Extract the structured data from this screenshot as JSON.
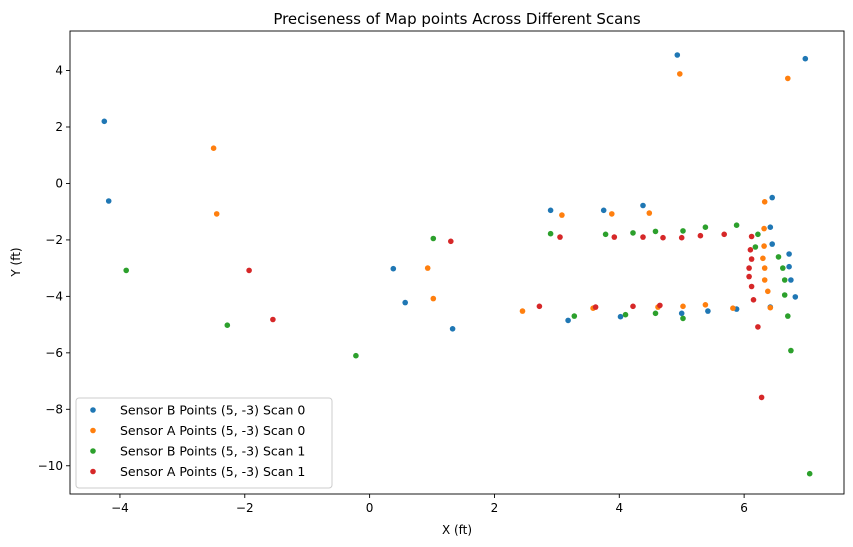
{
  "chart_data": {
    "type": "scatter",
    "title": "Preciseness of Map points Across Different Scans",
    "xlabel": "X (ft)",
    "ylabel": "Y (ft)",
    "xlim": [
      -4.8,
      7.6
    ],
    "ylim": [
      -11.0,
      5.4
    ],
    "xticks": [
      -4,
      -2,
      0,
      2,
      4,
      6
    ],
    "yticks": [
      -10,
      -8,
      -6,
      -4,
      -2,
      0,
      2,
      4
    ],
    "xtick_labels": [
      "−4",
      "−2",
      "0",
      "2",
      "4",
      "6"
    ],
    "ytick_labels": [
      "−10",
      "−8",
      "−6",
      "−4",
      "−2",
      "0",
      "2",
      "4"
    ],
    "grid": false,
    "legend_position": "lower-left",
    "series": [
      {
        "name": "Sensor B Points (5, -3) Scan 0",
        "color": "#1f77b4",
        "points": [
          [
            -4.25,
            2.2
          ],
          [
            -4.18,
            -0.62
          ],
          [
            0.38,
            -3.02
          ],
          [
            0.57,
            -4.22
          ],
          [
            1.33,
            -5.15
          ],
          [
            2.9,
            -0.95
          ],
          [
            3.18,
            -4.85
          ],
          [
            3.75,
            -0.95
          ],
          [
            4.02,
            -4.72
          ],
          [
            4.38,
            -0.78
          ],
          [
            5.0,
            -4.6
          ],
          [
            5.42,
            -4.52
          ],
          [
            5.88,
            -4.45
          ],
          [
            4.93,
            4.55
          ],
          [
            6.45,
            -0.5
          ],
          [
            6.42,
            -1.55
          ],
          [
            6.45,
            -2.15
          ],
          [
            6.72,
            -2.5
          ],
          [
            6.72,
            -2.95
          ],
          [
            6.75,
            -3.42
          ],
          [
            6.42,
            -4.38
          ],
          [
            6.82,
            -4.02
          ],
          [
            6.98,
            4.42
          ]
        ]
      },
      {
        "name": "Sensor A Points (5, -3) Scan 0",
        "color": "#ff7f0e",
        "points": [
          [
            -2.5,
            1.25
          ],
          [
            -2.45,
            -1.08
          ],
          [
            0.93,
            -3.0
          ],
          [
            1.02,
            -4.08
          ],
          [
            2.45,
            -4.52
          ],
          [
            3.08,
            -1.12
          ],
          [
            3.58,
            -4.42
          ],
          [
            3.88,
            -1.08
          ],
          [
            4.48,
            -1.05
          ],
          [
            4.62,
            -4.38
          ],
          [
            5.02,
            -4.35
          ],
          [
            5.38,
            -4.3
          ],
          [
            5.82,
            -4.42
          ],
          [
            4.97,
            3.88
          ],
          [
            6.33,
            -0.65
          ],
          [
            6.32,
            -1.6
          ],
          [
            6.32,
            -2.22
          ],
          [
            6.3,
            -2.65
          ],
          [
            6.33,
            -3.0
          ],
          [
            6.33,
            -3.42
          ],
          [
            6.38,
            -3.82
          ],
          [
            6.42,
            -4.4
          ],
          [
            6.7,
            3.72
          ]
        ]
      },
      {
        "name": "Sensor B Points (5, -3) Scan 1",
        "color": "#2ca02c",
        "points": [
          [
            -3.9,
            -3.08
          ],
          [
            -2.28,
            -5.02
          ],
          [
            -0.22,
            -6.1
          ],
          [
            1.02,
            -1.95
          ],
          [
            2.9,
            -1.78
          ],
          [
            3.28,
            -4.7
          ],
          [
            3.78,
            -1.8
          ],
          [
            4.1,
            -4.65
          ],
          [
            4.22,
            -1.75
          ],
          [
            4.58,
            -1.7
          ],
          [
            4.58,
            -4.6
          ],
          [
            5.02,
            -1.68
          ],
          [
            5.02,
            -4.78
          ],
          [
            5.38,
            -1.55
          ],
          [
            5.88,
            -1.48
          ],
          [
            6.22,
            -1.8
          ],
          [
            6.18,
            -2.25
          ],
          [
            6.55,
            -2.6
          ],
          [
            6.62,
            -3.0
          ],
          [
            6.65,
            -3.42
          ],
          [
            6.65,
            -3.95
          ],
          [
            6.7,
            -4.7
          ],
          [
            6.75,
            -5.92
          ],
          [
            7.05,
            -10.28
          ]
        ]
      },
      {
        "name": "Sensor A Points (5, -3) Scan 1",
        "color": "#d62728",
        "points": [
          [
            -1.93,
            -3.08
          ],
          [
            -1.55,
            -4.82
          ],
          [
            1.3,
            -2.05
          ],
          [
            2.72,
            -4.35
          ],
          [
            3.05,
            -1.9
          ],
          [
            3.62,
            -4.38
          ],
          [
            3.92,
            -1.9
          ],
          [
            4.22,
            -4.35
          ],
          [
            4.38,
            -1.9
          ],
          [
            4.65,
            -4.32
          ],
          [
            4.7,
            -1.92
          ],
          [
            5.0,
            -1.92
          ],
          [
            5.3,
            -1.85
          ],
          [
            5.68,
            -1.8
          ],
          [
            6.12,
            -1.88
          ],
          [
            6.1,
            -2.35
          ],
          [
            6.12,
            -2.68
          ],
          [
            6.08,
            -3.0
          ],
          [
            6.08,
            -3.3
          ],
          [
            6.12,
            -3.65
          ],
          [
            6.15,
            -4.12
          ],
          [
            6.22,
            -5.08
          ],
          [
            6.28,
            -7.58
          ]
        ]
      }
    ]
  }
}
